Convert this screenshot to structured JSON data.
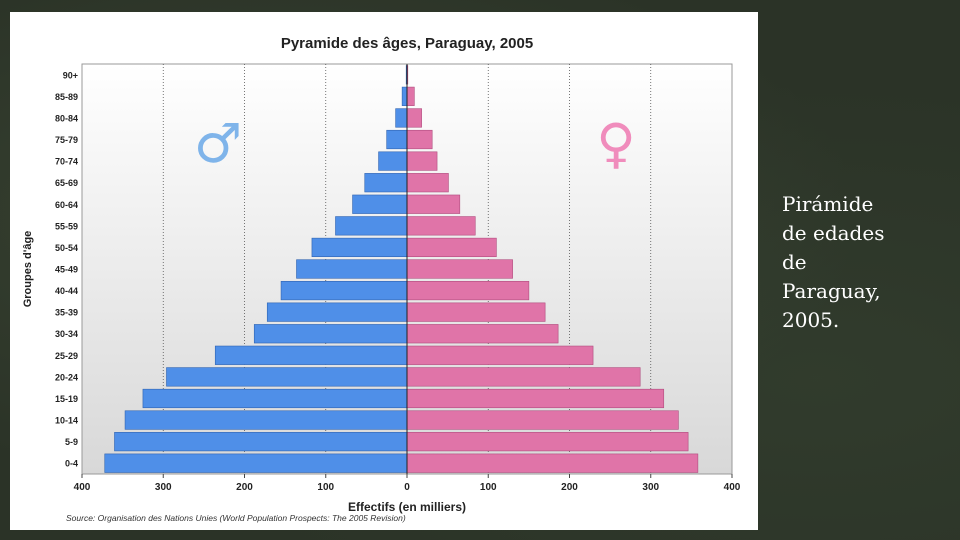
{
  "caption": "Pirámide\nde edades\nde\nParaguay,\n2005.",
  "colors": {
    "male": "#4f8fe8",
    "female": "#e074a8",
    "male_symbol": "#7fb4ea",
    "female_symbol": "#f08cbc",
    "plot_bg_top": "#ffffff",
    "plot_bg_bottom": "#d8d8d8"
  },
  "icons": {
    "male": "♂",
    "female": "♀"
  },
  "chart_data": {
    "type": "bar",
    "orientation": "horizontal",
    "title": "Pyramide des âges, Paraguay, 2005",
    "xlabel": "Effectifs (en milliers)",
    "ylabel": "Groupes d'âge",
    "source": "Source: Organisation des Nations Unies (World Population Prospects: The 2005 Revision)",
    "xlim": [
      -400,
      400
    ],
    "x_ticks": [
      -400,
      -300,
      -200,
      -100,
      0,
      100,
      200,
      300,
      400
    ],
    "x_tick_labels": [
      "400",
      "300",
      "200",
      "100",
      "0",
      "100",
      "200",
      "300",
      "400"
    ],
    "grid": true,
    "categories": [
      "0-4",
      "5-9",
      "10-14",
      "15-19",
      "20-24",
      "25-29",
      "30-34",
      "35-39",
      "40-44",
      "45-49",
      "50-54",
      "55-59",
      "60-64",
      "65-69",
      "70-74",
      "75-79",
      "80-84",
      "85-89",
      "90+"
    ],
    "series": [
      {
        "key": "male",
        "values": [
          372,
          360,
          347,
          325,
          296,
          236,
          188,
          172,
          155,
          136,
          117,
          88,
          67,
          52,
          35,
          25,
          14,
          6,
          1
        ]
      },
      {
        "key": "female",
        "values": [
          358,
          346,
          334,
          316,
          287,
          229,
          186,
          170,
          150,
          130,
          110,
          84,
          65,
          51,
          37,
          31,
          18,
          9,
          1
        ]
      }
    ]
  }
}
